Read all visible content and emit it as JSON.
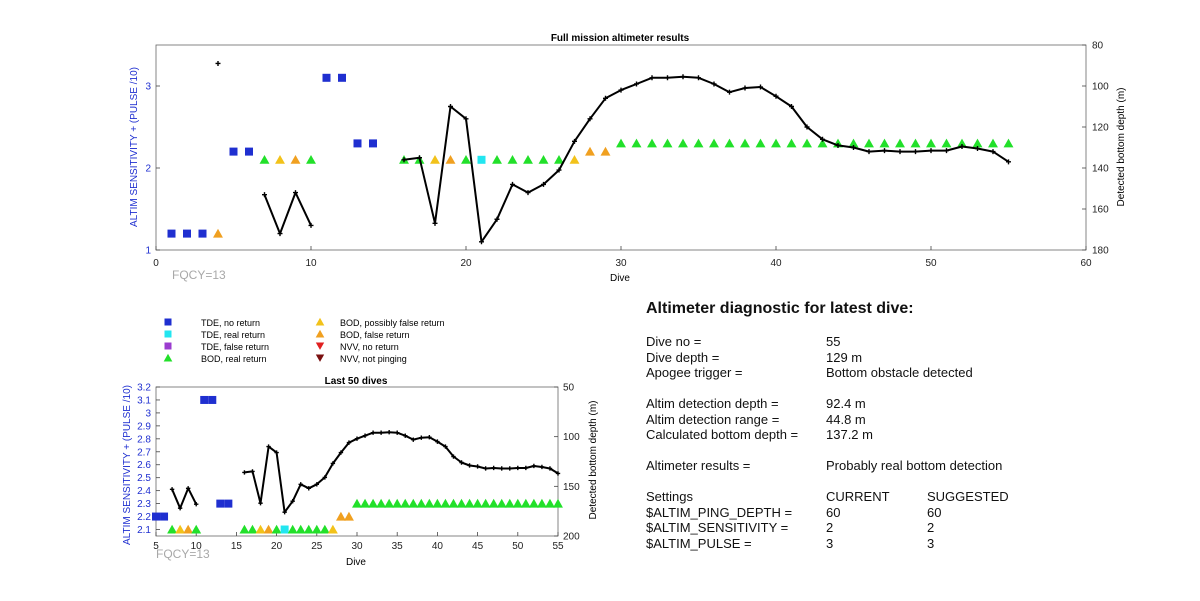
{
  "colors": {
    "tde_no_return": "#1f2fd0",
    "tde_real_return": "#22e6f0",
    "tde_false_return": "#9b3ccf",
    "bod_real_return": "#22e02a",
    "bod_possibly_false": "#f2c21a",
    "bod_false_return": "#f0a020",
    "nvv_no_return": "#e02020",
    "nvv_not_pinging": "#7a1010",
    "depth_line": "#000000",
    "left_axis": "#1f2fd0",
    "fqcy_text": "#a8a8a8"
  },
  "legend": {
    "tde_no_return": "TDE, no return",
    "tde_real_return": "TDE, real return",
    "tde_false_return": "TDE, false return",
    "bod_real_return": "BOD, real return",
    "bod_possibly_false": "BOD, possibly false return",
    "bod_false_return": "BOD, false return",
    "nvv_no_return": "NVV, no return",
    "nvv_not_pinging": "NVV, not pinging"
  },
  "chart_data": [
    {
      "type": "scatter",
      "title": "Full mission altimeter results",
      "xlabel": "Dive",
      "ylabel": "ALTIM SENSITIVITY + (PULSE /10)",
      "y2label": "Detected bottom depth (m)",
      "annotation": "FQCY=13",
      "xlim": [
        0,
        60
      ],
      "ylim": [
        1,
        3.5
      ],
      "y2lim": [
        80,
        180
      ],
      "y2_reversed": true,
      "xticks": [
        "0",
        "10",
        "20",
        "30",
        "40",
        "50",
        "60"
      ],
      "yticks": [
        "1",
        "2",
        "3"
      ],
      "y2ticks": [
        "80",
        "100",
        "120",
        "140",
        "160",
        "180"
      ],
      "markers": [
        {
          "x": 1,
          "y": 1.2,
          "k": "tde_no_return"
        },
        {
          "x": 2,
          "y": 1.2,
          "k": "tde_no_return"
        },
        {
          "x": 3,
          "y": 1.2,
          "k": "tde_no_return"
        },
        {
          "x": 4,
          "y": 1.2,
          "k": "bod_false_return"
        },
        {
          "x": 5,
          "y": 2.2,
          "k": "tde_no_return"
        },
        {
          "x": 6,
          "y": 2.2,
          "k": "tde_no_return"
        },
        {
          "x": 7,
          "y": 2.1,
          "k": "bod_real_return"
        },
        {
          "x": 8,
          "y": 2.1,
          "k": "bod_possibly_false"
        },
        {
          "x": 9,
          "y": 2.1,
          "k": "bod_false_return"
        },
        {
          "x": 10,
          "y": 2.1,
          "k": "bod_real_return"
        },
        {
          "x": 11,
          "y": 3.1,
          "k": "tde_no_return"
        },
        {
          "x": 12,
          "y": 3.1,
          "k": "tde_no_return"
        },
        {
          "x": 13,
          "y": 2.3,
          "k": "tde_no_return"
        },
        {
          "x": 14,
          "y": 2.3,
          "k": "tde_no_return"
        },
        {
          "x": 16,
          "y": 2.1,
          "k": "bod_real_return"
        },
        {
          "x": 17,
          "y": 2.1,
          "k": "bod_real_return"
        },
        {
          "x": 18,
          "y": 2.1,
          "k": "bod_possibly_false"
        },
        {
          "x": 19,
          "y": 2.1,
          "k": "bod_false_return"
        },
        {
          "x": 20,
          "y": 2.1,
          "k": "bod_real_return"
        },
        {
          "x": 21,
          "y": 2.1,
          "k": "tde_real_return"
        },
        {
          "x": 22,
          "y": 2.1,
          "k": "bod_real_return"
        },
        {
          "x": 23,
          "y": 2.1,
          "k": "bod_real_return"
        },
        {
          "x": 24,
          "y": 2.1,
          "k": "bod_real_return"
        },
        {
          "x": 25,
          "y": 2.1,
          "k": "bod_real_return"
        },
        {
          "x": 26,
          "y": 2.1,
          "k": "bod_real_return"
        },
        {
          "x": 27,
          "y": 2.1,
          "k": "bod_possibly_false"
        },
        {
          "x": 28,
          "y": 2.2,
          "k": "bod_false_return"
        },
        {
          "x": 29,
          "y": 2.2,
          "k": "bod_false_return"
        },
        {
          "x": 30,
          "y": 2.3,
          "k": "bod_real_return"
        },
        {
          "x": 31,
          "y": 2.3,
          "k": "bod_real_return"
        },
        {
          "x": 32,
          "y": 2.3,
          "k": "bod_real_return"
        },
        {
          "x": 33,
          "y": 2.3,
          "k": "bod_real_return"
        },
        {
          "x": 34,
          "y": 2.3,
          "k": "bod_real_return"
        },
        {
          "x": 35,
          "y": 2.3,
          "k": "bod_real_return"
        },
        {
          "x": 36,
          "y": 2.3,
          "k": "bod_real_return"
        },
        {
          "x": 37,
          "y": 2.3,
          "k": "bod_real_return"
        },
        {
          "x": 38,
          "y": 2.3,
          "k": "bod_real_return"
        },
        {
          "x": 39,
          "y": 2.3,
          "k": "bod_real_return"
        },
        {
          "x": 40,
          "y": 2.3,
          "k": "bod_real_return"
        },
        {
          "x": 41,
          "y": 2.3,
          "k": "bod_real_return"
        },
        {
          "x": 42,
          "y": 2.3,
          "k": "bod_real_return"
        },
        {
          "x": 43,
          "y": 2.3,
          "k": "bod_real_return"
        },
        {
          "x": 44,
          "y": 2.3,
          "k": "bod_real_return"
        },
        {
          "x": 45,
          "y": 2.3,
          "k": "bod_real_return"
        },
        {
          "x": 46,
          "y": 2.3,
          "k": "bod_real_return"
        },
        {
          "x": 47,
          "y": 2.3,
          "k": "bod_real_return"
        },
        {
          "x": 48,
          "y": 2.3,
          "k": "bod_real_return"
        },
        {
          "x": 49,
          "y": 2.3,
          "k": "bod_real_return"
        },
        {
          "x": 50,
          "y": 2.3,
          "k": "bod_real_return"
        },
        {
          "x": 51,
          "y": 2.3,
          "k": "bod_real_return"
        },
        {
          "x": 52,
          "y": 2.3,
          "k": "bod_real_return"
        },
        {
          "x": 53,
          "y": 2.3,
          "k": "bod_real_return"
        },
        {
          "x": 54,
          "y": 2.3,
          "k": "bod_real_return"
        },
        {
          "x": 55,
          "y": 2.3,
          "k": "bod_real_return"
        }
      ],
      "depth_points": [
        [
          4,
          89
        ]
      ],
      "depth_segments": [
        [
          [
            7,
            153
          ],
          [
            8,
            172
          ],
          [
            9,
            152
          ],
          [
            10,
            168
          ]
        ],
        [
          [
            16,
            136
          ],
          [
            17,
            135
          ],
          [
            18,
            167
          ],
          [
            19,
            110
          ],
          [
            20,
            116
          ],
          [
            21,
            176
          ],
          [
            22,
            165
          ],
          [
            23,
            148
          ],
          [
            24,
            152
          ],
          [
            25,
            148
          ],
          [
            26,
            141
          ],
          [
            27,
            127
          ],
          [
            28,
            116
          ],
          [
            29,
            106
          ],
          [
            30,
            102
          ],
          [
            31,
            99
          ],
          [
            32,
            96
          ],
          [
            33,
            96
          ],
          [
            34,
            95.5
          ],
          [
            35,
            96
          ],
          [
            36,
            99
          ],
          [
            37,
            103
          ],
          [
            38,
            101
          ],
          [
            39,
            100.5
          ],
          [
            40,
            105
          ],
          [
            41,
            110
          ],
          [
            42,
            120
          ],
          [
            43,
            126
          ],
          [
            44,
            129
          ],
          [
            45,
            130
          ],
          [
            46,
            132
          ],
          [
            47,
            131.5
          ],
          [
            48,
            132
          ],
          [
            49,
            132
          ],
          [
            50,
            131.5
          ],
          [
            51,
            131.5
          ],
          [
            52,
            129.5
          ],
          [
            53,
            130.5
          ],
          [
            54,
            132
          ],
          [
            55,
            137
          ]
        ]
      ]
    },
    {
      "type": "scatter",
      "title": "Last 50 dives",
      "xlabel": "Dive",
      "ylabel": "ALTIM SENSITIVITY + (PULSE /10)",
      "y2label": "Detected bottom depth (m)",
      "annotation": "FQCY=13",
      "xlim": [
        5,
        55
      ],
      "ylim": [
        2.05,
        3.2
      ],
      "y2lim": [
        50,
        200
      ],
      "y2_reversed": true,
      "xticks": [
        "5",
        "10",
        "15",
        "20",
        "25",
        "30",
        "35",
        "40",
        "45",
        "50",
        "55"
      ],
      "yticks": [
        "2.1",
        "2.2",
        "2.3",
        "2.4",
        "2.5",
        "2.6",
        "2.7",
        "2.8",
        "2.9",
        "3",
        "3.1",
        "3.2"
      ],
      "y2ticks": [
        "50",
        "100",
        "150",
        "200"
      ]
    }
  ],
  "diagnostic": {
    "title": "Altimeter diagnostic for latest dive:",
    "dive_no_label": "Dive no =",
    "dive_no": "55",
    "dive_depth_label": "Dive depth =",
    "dive_depth": "129 m",
    "apogee_label": "Apogee trigger =",
    "apogee": "Bottom obstacle detected",
    "altim_depth_label": "Altim detection depth =",
    "altim_depth": "92.4 m",
    "altim_range_label": "Altim detection range =",
    "altim_range": "44.8 m",
    "calc_depth_label": "Calculated bottom depth =",
    "calc_depth": "137.2 m",
    "results_label": "Altimeter results =",
    "results": "Probably real bottom detection",
    "settings_label": "Settings",
    "current_label": "CURRENT",
    "suggested_label": "SUGGESTED",
    "ping_depth_label": "$ALTIM_PING_DEPTH =",
    "ping_depth_current": "60",
    "ping_depth_suggested": "60",
    "sensitivity_label": "$ALTIM_SENSITIVITY =",
    "sensitivity_current": "2",
    "sensitivity_suggested": "2",
    "pulse_label": "$ALTIM_PULSE =",
    "pulse_current": "3",
    "pulse_suggested": "3"
  }
}
